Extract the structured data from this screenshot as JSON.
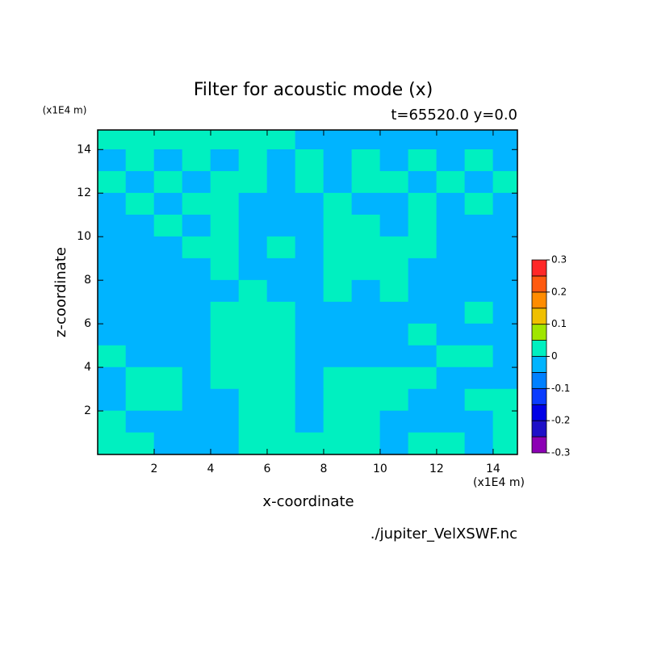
{
  "chart_data": {
    "type": "contour",
    "title": "Filter for acoustic mode (x)",
    "subtitle": "t=65520.0 y=0.0",
    "y_unit": "(x1E4 m)",
    "x_unit": "(x1E4 m)",
    "xlabel": "x-coordinate",
    "ylabel": "z-coordinate",
    "footnote": "./jupiter_VelXSWF.nc",
    "xlim": [
      0,
      14.86
    ],
    "ylim": [
      0,
      14.9
    ],
    "xticks": [
      2,
      4,
      6,
      8,
      10,
      12,
      14
    ],
    "yticks": [
      2,
      4,
      6,
      8,
      10,
      12,
      14
    ],
    "x": [
      0.5,
      1.5,
      2.5,
      3.5,
      4.5,
      5.5,
      6.5,
      7.5,
      8.5,
      9.5,
      10.5,
      11.5,
      12.5,
      13.5,
      14.5
    ],
    "y": [
      14.5,
      13.5,
      12.5,
      11.5,
      10.5,
      9.5,
      8.5,
      7.5,
      6.5,
      5.5,
      4.5,
      3.5,
      2.5,
      1.5,
      0.5
    ],
    "values": [
      [
        0.025,
        0.025,
        0.025,
        0.025,
        0.025,
        0.025,
        0.025,
        -0.025,
        -0.025,
        -0.025,
        -0.025,
        -0.025,
        -0.025,
        -0.025,
        -0.025
      ],
      [
        -0.025,
        0.025,
        -0.025,
        0.025,
        -0.025,
        0.025,
        -0.025,
        0.025,
        -0.025,
        0.025,
        -0.025,
        0.025,
        -0.025,
        0.025,
        -0.025
      ],
      [
        0.025,
        -0.025,
        0.025,
        -0.025,
        0.025,
        0.025,
        -0.025,
        0.025,
        -0.025,
        0.025,
        0.025,
        -0.025,
        0.025,
        -0.025,
        0.025
      ],
      [
        -0.025,
        0.025,
        -0.025,
        0.025,
        0.025,
        -0.025,
        -0.025,
        -0.025,
        0.025,
        -0.025,
        -0.025,
        0.025,
        -0.025,
        0.025,
        -0.025
      ],
      [
        -0.025,
        -0.025,
        0.025,
        -0.025,
        0.025,
        -0.025,
        -0.025,
        -0.025,
        0.025,
        0.025,
        -0.025,
        0.025,
        -0.025,
        -0.025,
        -0.025
      ],
      [
        -0.025,
        -0.025,
        -0.025,
        0.025,
        0.025,
        -0.025,
        0.025,
        -0.025,
        0.025,
        0.025,
        0.025,
        0.025,
        -0.025,
        -0.025,
        -0.025
      ],
      [
        -0.025,
        -0.025,
        -0.025,
        -0.025,
        0.025,
        -0.025,
        -0.025,
        -0.025,
        0.025,
        0.025,
        0.025,
        -0.025,
        -0.025,
        -0.025,
        -0.025
      ],
      [
        -0.025,
        -0.025,
        -0.025,
        -0.025,
        -0.025,
        0.025,
        -0.025,
        -0.025,
        0.025,
        -0.025,
        0.025,
        -0.025,
        -0.025,
        -0.025,
        -0.025
      ],
      [
        -0.025,
        -0.025,
        -0.025,
        -0.025,
        0.025,
        0.025,
        0.025,
        -0.025,
        -0.025,
        -0.025,
        -0.025,
        -0.025,
        -0.025,
        0.025,
        -0.025
      ],
      [
        -0.025,
        -0.025,
        -0.025,
        -0.025,
        0.025,
        0.025,
        0.025,
        -0.025,
        -0.025,
        -0.025,
        -0.025,
        0.025,
        -0.025,
        -0.025,
        -0.025
      ],
      [
        0.025,
        -0.025,
        -0.025,
        -0.025,
        0.025,
        0.025,
        0.025,
        -0.025,
        -0.025,
        -0.025,
        -0.025,
        -0.025,
        0.025,
        0.025,
        -0.025
      ],
      [
        -0.025,
        0.025,
        0.025,
        -0.025,
        0.025,
        0.025,
        0.025,
        -0.025,
        0.025,
        0.025,
        0.025,
        0.025,
        -0.025,
        -0.025,
        -0.025
      ],
      [
        -0.025,
        0.025,
        0.025,
        -0.025,
        -0.025,
        0.025,
        0.025,
        -0.025,
        0.025,
        0.025,
        0.025,
        -0.025,
        -0.025,
        0.025,
        0.025
      ],
      [
        0.025,
        -0.025,
        -0.025,
        -0.025,
        -0.025,
        0.025,
        0.025,
        -0.025,
        0.025,
        0.025,
        -0.025,
        -0.025,
        -0.025,
        -0.025,
        0.025
      ],
      [
        0.025,
        0.025,
        -0.025,
        -0.025,
        -0.025,
        0.025,
        0.025,
        0.025,
        0.025,
        0.025,
        -0.025,
        0.025,
        0.025,
        -0.025,
        0.025
      ]
    ],
    "levels": [
      -0.3,
      -0.25,
      -0.2,
      -0.15,
      -0.1,
      -0.05,
      0,
      0.05,
      0.1,
      0.15,
      0.2,
      0.25,
      0.3
    ],
    "level_colors": [
      "#8c00b4",
      "#1e10c8",
      "#0000e6",
      "#0a3cff",
      "#0080ff",
      "#00b4ff",
      "#00f0c0",
      "#a0e600",
      "#f0c000",
      "#ff8c00",
      "#ff5a10",
      "#ff2828",
      "#ffaaaa"
    ],
    "colorbar_ticks": [
      -0.3,
      -0.2,
      -0.1,
      0,
      0.1,
      0.2,
      0.3
    ]
  }
}
